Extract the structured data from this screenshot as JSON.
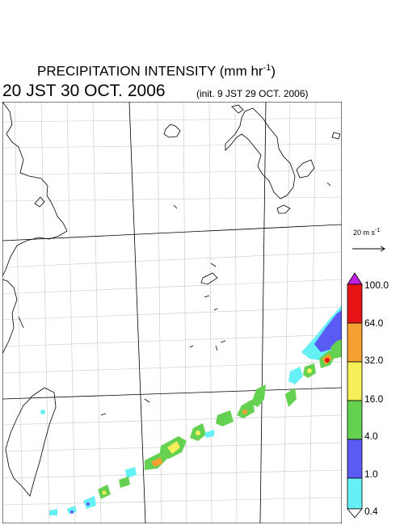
{
  "title": {
    "main": "PRECIPITATION INTENSITY (mm hr",
    "unit_exponent": "-1",
    "close_paren": ")"
  },
  "valid_time": "20 JST 30 OCT. 2006",
  "init_time": "(init. 9 JST 29 OCT. 2006)",
  "vector_scale": {
    "label": "20 m s",
    "exponent": "-1"
  },
  "colorbar": {
    "levels": [
      "100.0",
      "64.0",
      "32.0",
      "16.0",
      "4.0",
      "1.0",
      "0.4"
    ],
    "colors": {
      "above_100": "#c020e0",
      "64_100": "#e61414",
      "32_64": "#f5a030",
      "16_32": "#f5f05a",
      "4_16": "#64d250",
      "1_4": "#5a5af5",
      "04_1": "#64f0f5",
      "below_04": "#ffffff"
    }
  },
  "colors": {
    "coastline": "#000000",
    "grid": "#c8c8c8",
    "graticule": "#000000"
  }
}
